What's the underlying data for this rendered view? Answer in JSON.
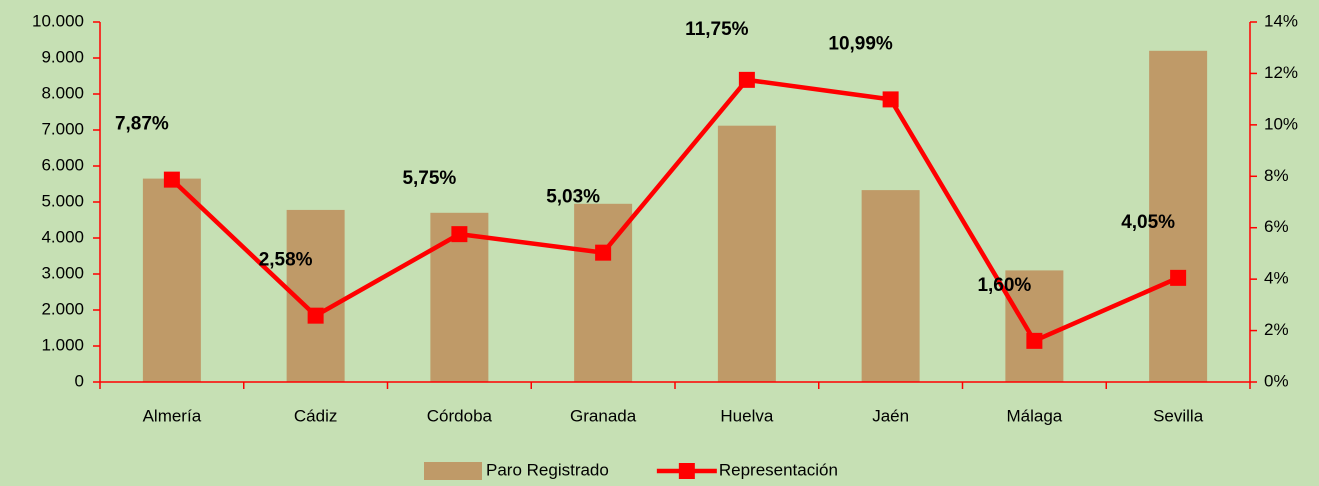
{
  "chart_data": {
    "type": "bar",
    "categories": [
      "Almería",
      "Cádiz",
      "Córdoba",
      "Granada",
      "Huelva",
      "Jaén",
      "Málaga",
      "Sevilla"
    ],
    "series": [
      {
        "name": "Paro Registrado",
        "type": "bar",
        "color": "#bf9a68",
        "values": [
          5650,
          4780,
          4700,
          4950,
          7120,
          5330,
          3100,
          9200
        ]
      },
      {
        "name": "Representación",
        "type": "line",
        "axis": "y2",
        "color": "#ff0000",
        "values": [
          7.87,
          2.58,
          5.75,
          5.03,
          11.75,
          10.99,
          1.6,
          4.05
        ],
        "value_labels": [
          "7,87%",
          "2,58%",
          "5,75%",
          "5,03%",
          "11,75%",
          "10,99%",
          "1,60%",
          "4,05%"
        ]
      }
    ],
    "ylim": [
      0,
      10000
    ],
    "yticks": [
      0,
      {
        "value": 1000,
        "label": "1.000"
      },
      {
        "value": 2000,
        "label": "2.000"
      },
      {
        "value": 3000,
        "label": "3.000"
      },
      {
        "value": 4000,
        "label": "4.000"
      },
      {
        "value": 5000,
        "label": "5.000"
      },
      {
        "value": 6000,
        "label": "6.000"
      },
      {
        "value": 7000,
        "label": "7.000"
      },
      {
        "value": 8000,
        "label": "8.000"
      },
      {
        "value": 9000,
        "label": "9.000"
      },
      {
        "value": 10000,
        "label": "10.000"
      }
    ],
    "y2lim": [
      0,
      14
    ],
    "y2ticks": [
      {
        "value": 0,
        "label": "0%"
      },
      {
        "value": 2,
        "label": "2%"
      },
      {
        "value": 4,
        "label": "4%"
      },
      {
        "value": 6,
        "label": "6%"
      },
      {
        "value": 8,
        "label": "8%"
      },
      {
        "value": 10,
        "label": "10%"
      },
      {
        "value": 12,
        "label": "12%"
      },
      {
        "value": 14,
        "label": "14%"
      }
    ],
    "axis_color": "#ff0000",
    "legend": "bottom"
  }
}
